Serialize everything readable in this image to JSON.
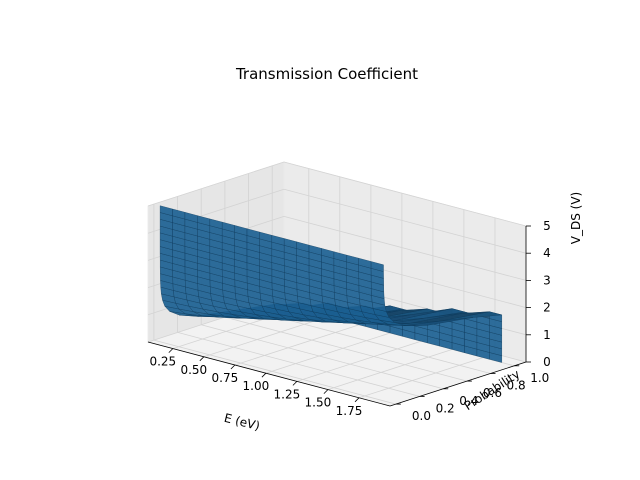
{
  "chart_data": {
    "type": "surface",
    "title": "Transmission Coefficient",
    "xlabel": "E (eV)",
    "ylabel": "Probability",
    "zlabel": "V_DS (V)",
    "xlim": [
      0.05,
      2.0
    ],
    "ylim": [
      -0.05,
      1.1
    ],
    "zlim": [
      0,
      5
    ],
    "x_ticks": [
      "0.25",
      "0.50",
      "0.75",
      "1.00",
      "1.25",
      "1.50",
      "1.75"
    ],
    "y_ticks": [
      "0.0",
      "0.2",
      "0.4",
      "0.6",
      "0.8",
      "1.0"
    ],
    "z_ticks": [
      "0",
      "1",
      "2",
      "3",
      "4",
      "5"
    ],
    "grid": true,
    "surface_color": "#1f77b4",
    "surface": {
      "E": [
        0.1,
        0.2,
        0.3,
        0.4,
        0.5,
        0.6,
        0.7,
        0.8,
        0.9,
        1.0,
        1.1,
        1.2,
        1.3,
        1.4,
        1.5,
        1.6,
        1.7,
        1.8,
        1.9
      ],
      "V_DS": [
        0,
        0.25,
        0.5,
        0.75,
        1,
        1.25,
        1.5,
        1.75,
        2,
        2.25,
        2.5,
        2.75,
        3,
        3.25,
        3.5,
        3.75,
        4,
        4.25,
        4.5,
        4.75,
        5
      ],
      "probability_model": "T = 1 for E > V_DS, decaying as exp(-2.8*(V_DS - E)) for V_DS > E"
    }
  }
}
